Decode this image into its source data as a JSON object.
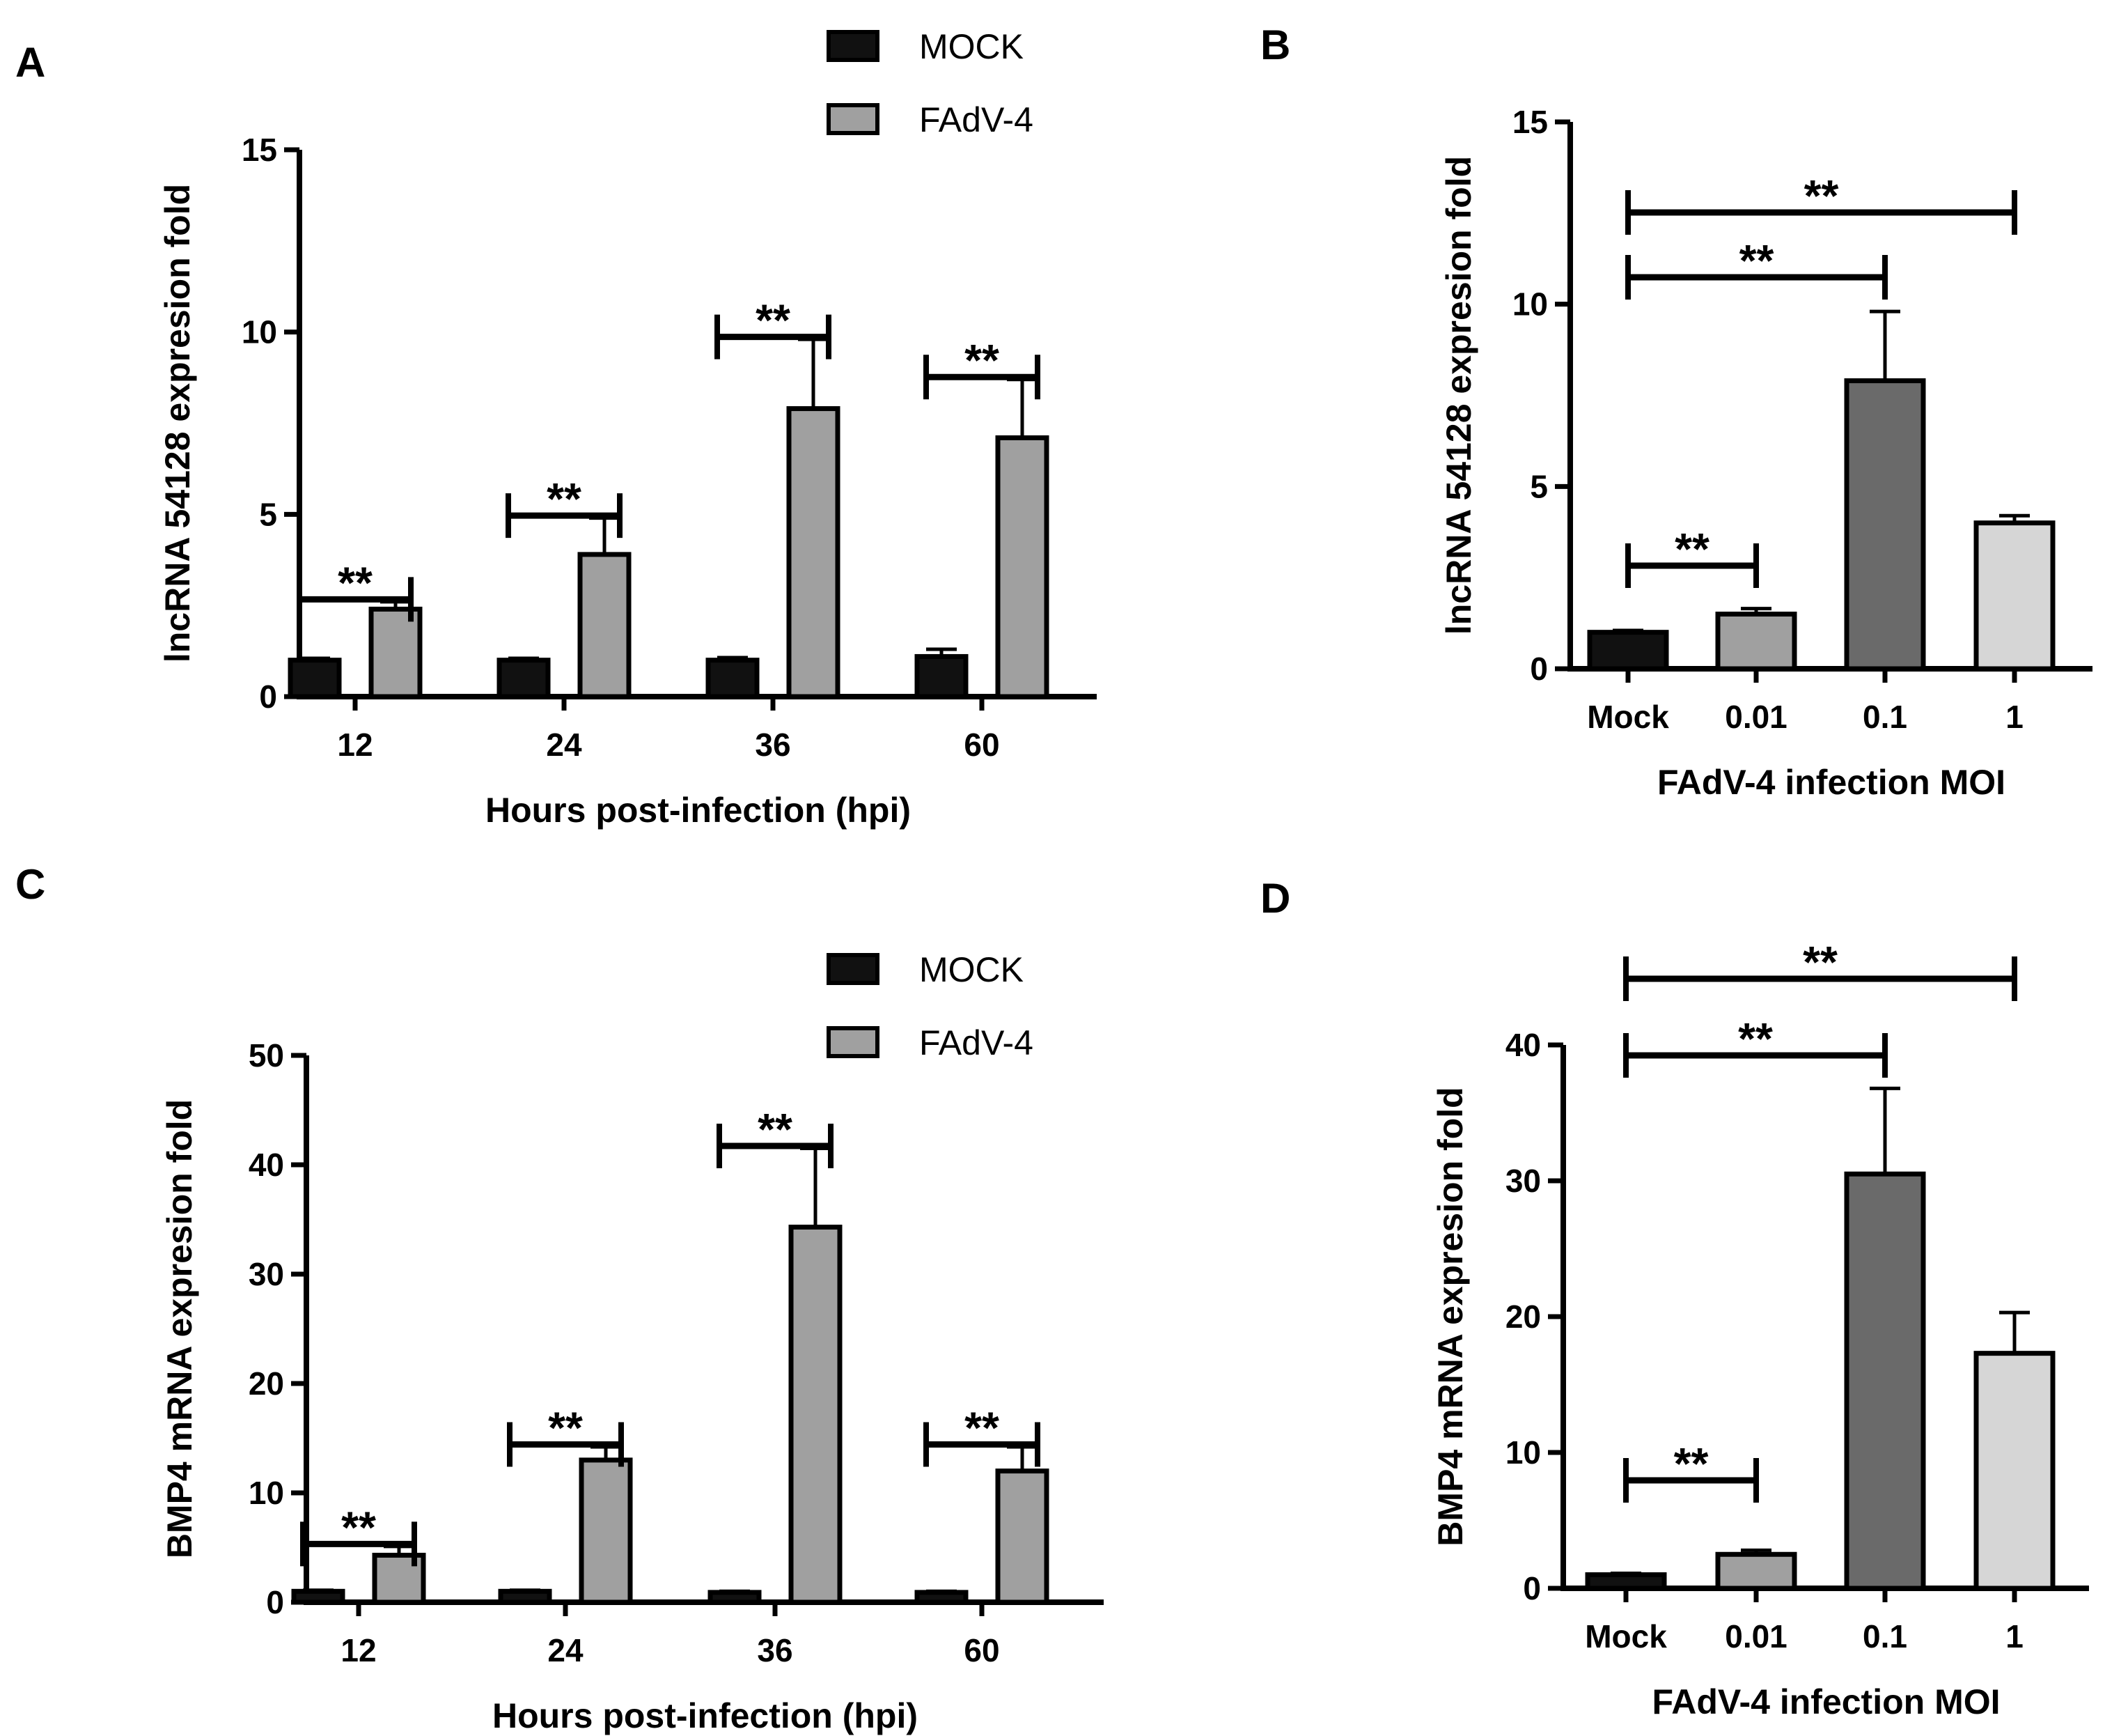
{
  "legend": {
    "items": [
      {
        "label": "MOCK",
        "color": "#111111"
      },
      {
        "label": "FAdV-4",
        "color": "#a0a0a0"
      }
    ]
  },
  "chart_data": [
    {
      "panel": "A",
      "type": "bar",
      "categories": [
        "12",
        "24",
        "36",
        "60"
      ],
      "series": [
        {
          "name": "MOCK",
          "values": [
            1.0,
            1.0,
            1.0,
            1.1
          ],
          "errors": [
            0.05,
            0.05,
            0.07,
            0.2
          ]
        },
        {
          "name": "FAdV-4",
          "values": [
            2.4,
            3.9,
            7.9,
            7.1
          ],
          "errors": [
            0.2,
            1.0,
            1.9,
            1.6
          ]
        }
      ],
      "xlabel": "Hours post-infection (hpi)",
      "ylabel": "lncRNA 54128 expresion fold",
      "ylim": [
        0,
        15
      ],
      "yticks": [
        "0",
        "5",
        "10",
        "15"
      ],
      "significance": [
        "**",
        "**",
        "**",
        "**"
      ],
      "legend_position": "top-right"
    },
    {
      "panel": "B",
      "type": "bar",
      "categories": [
        "Mock",
        "0.01",
        "0.1",
        "1"
      ],
      "values": [
        1.0,
        1.5,
        7.9,
        4.0
      ],
      "errors": [
        0.05,
        0.15,
        1.9,
        0.2
      ],
      "colors": [
        "#111111",
        "#a0a0a0",
        "#6a6a6a",
        "#d6d6d6"
      ],
      "xlabel": "FAdV-4 infection MOI",
      "ylabel": "lncRNA 54128 expresion fold",
      "ylim": [
        0,
        15
      ],
      "yticks": [
        "0",
        "5",
        "10",
        "15"
      ],
      "significance": [
        {
          "from": "Mock",
          "to": "0.01",
          "label": "**"
        },
        {
          "from": "Mock",
          "to": "0.1",
          "label": "**"
        },
        {
          "from": "Mock",
          "to": "1",
          "label": "**"
        }
      ]
    },
    {
      "panel": "C",
      "type": "bar",
      "categories": [
        "12",
        "24",
        "36",
        "60"
      ],
      "series": [
        {
          "name": "MOCK",
          "values": [
            1.0,
            1.0,
            0.9,
            0.9
          ],
          "errors": [
            0.1,
            0.1,
            0.1,
            0.1
          ]
        },
        {
          "name": "FAdV-4",
          "values": [
            4.3,
            13.0,
            34.3,
            12.0
          ],
          "errors": [
            0.8,
            1.2,
            7.2,
            2.2
          ]
        }
      ],
      "xlabel": "Hours post-infection (hpi)",
      "ylabel": "BMP4 mRNA expresion fold",
      "ylim": [
        0,
        50
      ],
      "yticks": [
        "0",
        "10",
        "20",
        "30",
        "40",
        "50"
      ],
      "significance": [
        "**",
        "**",
        "**",
        "**"
      ],
      "legend_position": "top-right"
    },
    {
      "panel": "D",
      "type": "bar",
      "categories": [
        "Mock",
        "0.01",
        "0.1",
        "1"
      ],
      "values": [
        1.0,
        2.5,
        30.5,
        17.3
      ],
      "errors": [
        0.1,
        0.3,
        6.3,
        3.0
      ],
      "colors": [
        "#111111",
        "#a0a0a0",
        "#6a6a6a",
        "#d6d6d6"
      ],
      "xlabel": "FAdV-4 infection MOI",
      "ylabel": "BMP4 mRNA expresion fold",
      "ylim": [
        0,
        40
      ],
      "yticks": [
        "0",
        "10",
        "20",
        "30",
        "40"
      ],
      "significance": [
        {
          "from": "Mock",
          "to": "0.01",
          "label": "**"
        },
        {
          "from": "Mock",
          "to": "0.1",
          "label": "**"
        },
        {
          "from": "Mock",
          "to": "1",
          "label": "**"
        }
      ]
    }
  ]
}
